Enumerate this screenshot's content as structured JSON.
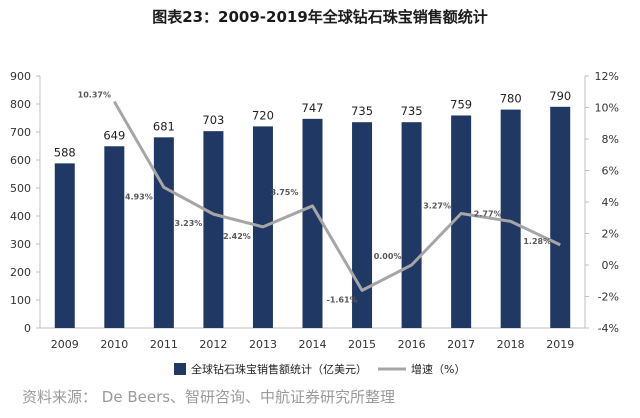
{
  "chart_data": {
    "type": "bar+line",
    "title": "图表23：2009-2019年全球钻石珠宝销售额统计",
    "categories": [
      "2009",
      "2010",
      "2011",
      "2012",
      "2013",
      "2014",
      "2015",
      "2016",
      "2017",
      "2018",
      "2019"
    ],
    "series": [
      {
        "name": "全球钻石珠宝销售额统计（亿美元）",
        "type": "bar",
        "axis": "left",
        "color": "#1f3864",
        "values": [
          588,
          649,
          681,
          703,
          720,
          747,
          735,
          735,
          759,
          780,
          790
        ],
        "labels": [
          "588",
          "649",
          "681",
          "703",
          "720",
          "747",
          "735",
          "735",
          "759",
          "780",
          "790"
        ]
      },
      {
        "name": "增速（%）",
        "type": "line",
        "axis": "right",
        "color": "#a6a6a6",
        "x": [
          "2010",
          "2011",
          "2012",
          "2013",
          "2014",
          "2015",
          "2016",
          "2017",
          "2018",
          "2019"
        ],
        "values": [
          10.37,
          4.93,
          3.23,
          2.42,
          3.75,
          -1.61,
          0.0,
          3.27,
          2.77,
          1.28
        ],
        "labels": [
          "10.37%",
          "4.93%",
          "3.23%",
          "2.42%",
          "3.75%",
          "-1.61%",
          "0.00%",
          "3.27%",
          "2.77%",
          "1.28%"
        ]
      }
    ],
    "y_left": {
      "min": 0,
      "max": 900,
      "ticks": [
        "0",
        "100",
        "200",
        "300",
        "400",
        "500",
        "600",
        "700",
        "800",
        "900"
      ]
    },
    "y_right": {
      "min": -4,
      "max": 12,
      "ticks": [
        "-4%",
        "-2%",
        "0%",
        "2%",
        "4%",
        "6%",
        "8%",
        "10%",
        "12%"
      ]
    },
    "grid": false,
    "legend_position": "bottom"
  },
  "source": "资料来源： De Beers、智研咨询、中航证券研究所整理"
}
